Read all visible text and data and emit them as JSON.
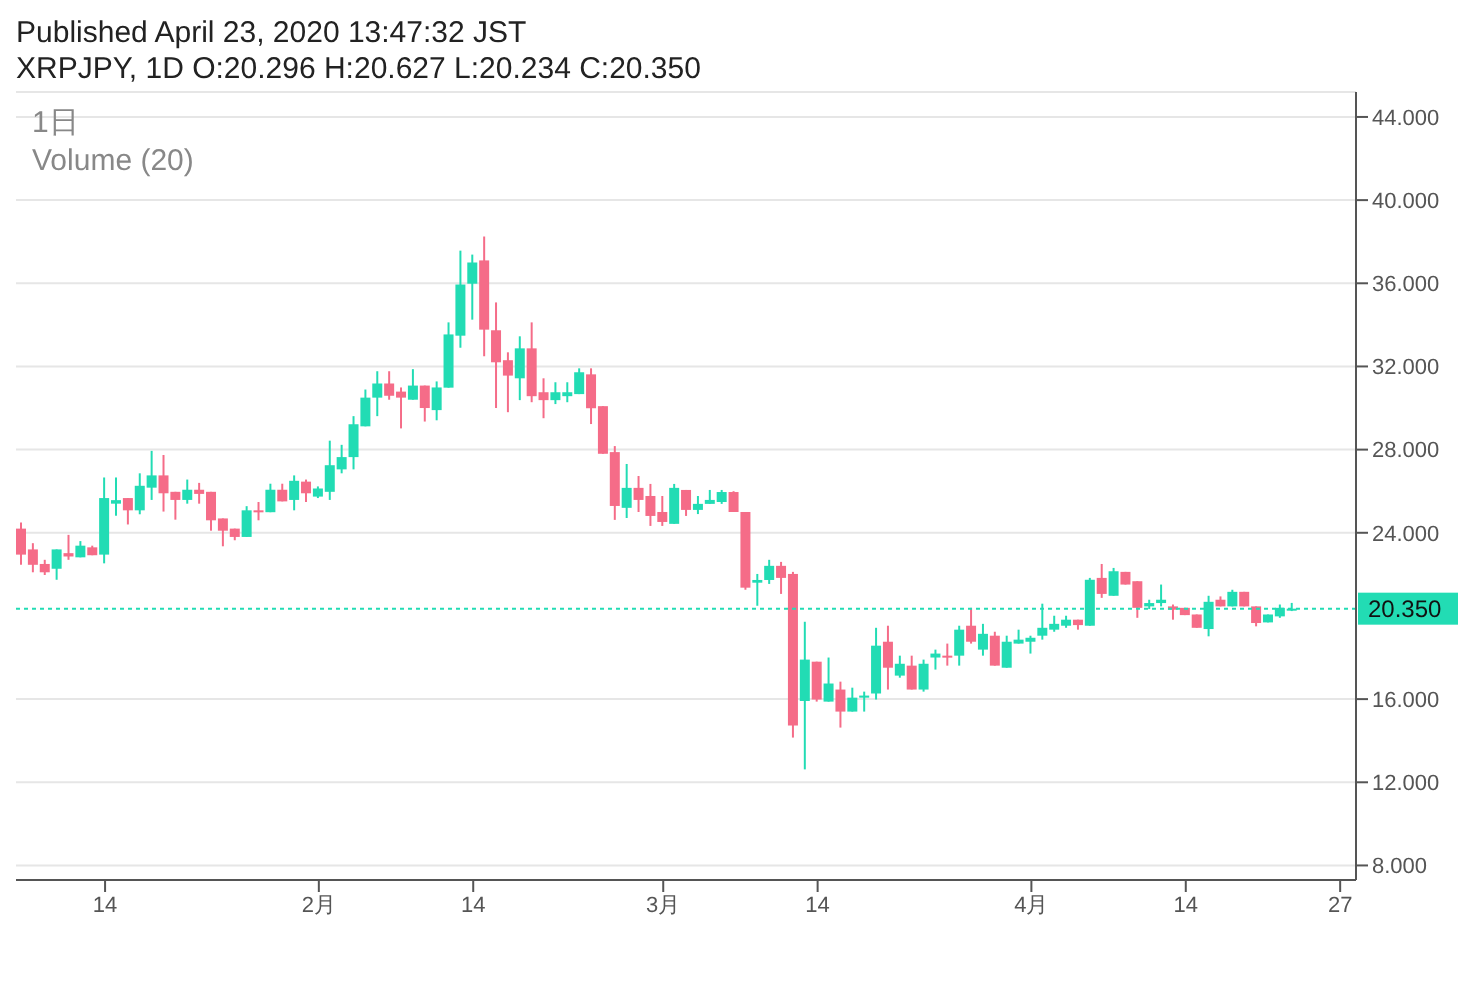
{
  "chart_data": {
    "type": "candlestick",
    "title": "Published April 23, 2020 13:47:32 JST",
    "subtitle": "XRPJPY, 1D O:20.296 H:20.627 L:20.234 C:20.350",
    "annotations": [
      "1日",
      "Volume (20)"
    ],
    "x": [
      "2020-01-07",
      "2020-01-08",
      "2020-01-09",
      "2020-01-10",
      "2020-01-11",
      "2020-01-12",
      "2020-01-13",
      "2020-01-14",
      "2020-01-15",
      "2020-01-16",
      "2020-01-17",
      "2020-01-18",
      "2020-01-19",
      "2020-01-20",
      "2020-01-21",
      "2020-01-22",
      "2020-01-23",
      "2020-01-24",
      "2020-01-25",
      "2020-01-26",
      "2020-01-27",
      "2020-01-28",
      "2020-01-29",
      "2020-01-30",
      "2020-01-31",
      "2020-02-01",
      "2020-02-02",
      "2020-02-03",
      "2020-02-04",
      "2020-02-05",
      "2020-02-06",
      "2020-02-07",
      "2020-02-08",
      "2020-02-09",
      "2020-02-10",
      "2020-02-11",
      "2020-02-12",
      "2020-02-13",
      "2020-02-14",
      "2020-02-15",
      "2020-02-16",
      "2020-02-17",
      "2020-02-18",
      "2020-02-19",
      "2020-02-20",
      "2020-02-21",
      "2020-02-22",
      "2020-02-23",
      "2020-02-24",
      "2020-02-25",
      "2020-02-26",
      "2020-02-27",
      "2020-02-28",
      "2020-02-29",
      "2020-03-01",
      "2020-03-02",
      "2020-03-03",
      "2020-03-04",
      "2020-03-05",
      "2020-03-06",
      "2020-03-07",
      "2020-03-08",
      "2020-03-09",
      "2020-03-10",
      "2020-03-11",
      "2020-03-12",
      "2020-03-13",
      "2020-03-14",
      "2020-03-15",
      "2020-03-16",
      "2020-03-17",
      "2020-03-18",
      "2020-03-19",
      "2020-03-20",
      "2020-03-21",
      "2020-03-22",
      "2020-03-23",
      "2020-03-24",
      "2020-03-25",
      "2020-03-26",
      "2020-03-27",
      "2020-03-28",
      "2020-03-29",
      "2020-03-30",
      "2020-03-31",
      "2020-04-01",
      "2020-04-02",
      "2020-04-03",
      "2020-04-04",
      "2020-04-05",
      "2020-04-06",
      "2020-04-07",
      "2020-04-08",
      "2020-04-09",
      "2020-04-10",
      "2020-04-11",
      "2020-04-12",
      "2020-04-13",
      "2020-04-14",
      "2020-04-15",
      "2020-04-16",
      "2020-04-17",
      "2020-04-18",
      "2020-04-19",
      "2020-04-20",
      "2020-04-21",
      "2020-04-22",
      "2020-04-23"
    ],
    "ohlc": [
      [
        24.2,
        24.5,
        22.46,
        22.95
      ],
      [
        23.2,
        23.5,
        22.1,
        22.46
      ],
      [
        22.5,
        22.7,
        21.97,
        22.1
      ],
      [
        22.27,
        23.2,
        21.74,
        23.2
      ],
      [
        23.02,
        23.9,
        22.7,
        22.86
      ],
      [
        22.82,
        23.6,
        22.82,
        23.38
      ],
      [
        23.3,
        23.38,
        22.92,
        22.92
      ],
      [
        22.95,
        26.66,
        22.53,
        25.67
      ],
      [
        25.4,
        26.66,
        24.82,
        25.57
      ],
      [
        25.67,
        25.67,
        24.4,
        25.08
      ],
      [
        25.08,
        26.86,
        24.89,
        26.26
      ],
      [
        26.17,
        27.94,
        25.58,
        26.76
      ],
      [
        26.76,
        27.74,
        25.02,
        25.9
      ],
      [
        25.97,
        25.97,
        24.63,
        25.58
      ],
      [
        25.58,
        26.56,
        25.4,
        26.07
      ],
      [
        26.07,
        26.4,
        25.4,
        25.87
      ],
      [
        25.97,
        25.97,
        24.1,
        24.6
      ],
      [
        24.69,
        24.69,
        23.35,
        24.1
      ],
      [
        24.2,
        24.2,
        23.64,
        23.8
      ],
      [
        23.8,
        25.28,
        23.8,
        25.08
      ],
      [
        25.08,
        25.48,
        24.6,
        24.99
      ],
      [
        24.99,
        26.36,
        24.99,
        26.07
      ],
      [
        26.07,
        26.36,
        25.51,
        25.51
      ],
      [
        25.58,
        26.76,
        25.08,
        26.5
      ],
      [
        26.46,
        26.56,
        25.48,
        25.9
      ],
      [
        25.74,
        26.23,
        25.67,
        26.13
      ],
      [
        25.97,
        28.43,
        25.58,
        27.25
      ],
      [
        27.05,
        28.23,
        26.86,
        27.64
      ],
      [
        27.64,
        29.61,
        27.05,
        29.22
      ],
      [
        29.12,
        30.89,
        29.12,
        30.5
      ],
      [
        30.5,
        31.77,
        29.61,
        31.18
      ],
      [
        31.18,
        31.77,
        30.4,
        30.59
      ],
      [
        30.79,
        30.99,
        29.02,
        30.5
      ],
      [
        30.4,
        31.87,
        30.4,
        31.08
      ],
      [
        31.08,
        31.08,
        29.35,
        30.0
      ],
      [
        29.9,
        31.28,
        29.41,
        30.99
      ],
      [
        30.98,
        34.12,
        30.98,
        33.54
      ],
      [
        33.48,
        37.57,
        32.9,
        35.94
      ],
      [
        35.98,
        37.38,
        34.25,
        37.0
      ],
      [
        37.1,
        38.25,
        32.49,
        33.77
      ],
      [
        33.74,
        35.08,
        30.0,
        32.2
      ],
      [
        32.3,
        32.68,
        29.8,
        31.56
      ],
      [
        31.43,
        33.45,
        30.38,
        32.87
      ],
      [
        32.87,
        34.12,
        30.28,
        30.57
      ],
      [
        30.76,
        31.43,
        29.51,
        30.38
      ],
      [
        30.38,
        31.24,
        30.19,
        30.76
      ],
      [
        30.57,
        31.24,
        30.28,
        30.76
      ],
      [
        30.67,
        31.91,
        30.67,
        31.72
      ],
      [
        31.62,
        31.91,
        29.23,
        29.99
      ],
      [
        30.09,
        30.09,
        27.8,
        27.8
      ],
      [
        27.88,
        28.17,
        24.62,
        25.29
      ],
      [
        25.2,
        27.31,
        24.71,
        26.16
      ],
      [
        26.16,
        26.73,
        25.0,
        25.58
      ],
      [
        25.77,
        26.35,
        24.33,
        24.81
      ],
      [
        25.0,
        25.77,
        24.33,
        24.52
      ],
      [
        24.43,
        26.35,
        24.43,
        26.16
      ],
      [
        26.06,
        26.06,
        24.81,
        25.1
      ],
      [
        25.1,
        25.77,
        24.9,
        25.39
      ],
      [
        25.39,
        26.06,
        25.39,
        25.58
      ],
      [
        25.48,
        26.06,
        25.39,
        25.96
      ],
      [
        25.96,
        26.0,
        25.0,
        25.0
      ],
      [
        25.0,
        25.0,
        21.26,
        21.36
      ],
      [
        21.6,
        22.02,
        20.49,
        21.73
      ],
      [
        21.73,
        22.7,
        21.54,
        22.41
      ],
      [
        22.41,
        22.6,
        21.06,
        21.83
      ],
      [
        22.02,
        22.12,
        14.15,
        14.73
      ],
      [
        15.91,
        19.72,
        12.62,
        17.9
      ],
      [
        17.8,
        17.8,
        15.88,
        15.98
      ],
      [
        15.88,
        18.0,
        15.88,
        16.75
      ],
      [
        16.46,
        16.84,
        14.63,
        15.4
      ],
      [
        15.4,
        16.55,
        15.4,
        16.07
      ],
      [
        16.07,
        16.36,
        15.4,
        16.17
      ],
      [
        16.27,
        19.43,
        15.98,
        18.57
      ],
      [
        18.76,
        19.53,
        16.46,
        17.51
      ],
      [
        17.13,
        18.09,
        17.03,
        17.7
      ],
      [
        17.61,
        18.09,
        16.46,
        16.46
      ],
      [
        16.46,
        17.9,
        16.36,
        17.7
      ],
      [
        18.0,
        18.38,
        17.42,
        18.19
      ],
      [
        18.09,
        18.67,
        17.61,
        18.0
      ],
      [
        18.09,
        19.53,
        17.61,
        19.34
      ],
      [
        19.53,
        20.39,
        18.67,
        18.76
      ],
      [
        18.38,
        19.62,
        18.09,
        19.14
      ],
      [
        19.05,
        19.24,
        17.61,
        17.61
      ],
      [
        17.51,
        19.05,
        17.51,
        18.76
      ],
      [
        18.67,
        19.34,
        18.67,
        18.86
      ],
      [
        18.76,
        19.05,
        18.19,
        18.95
      ],
      [
        19.05,
        20.59,
        18.86,
        19.43
      ],
      [
        19.34,
        20.01,
        19.24,
        19.62
      ],
      [
        19.53,
        20.01,
        19.43,
        19.82
      ],
      [
        19.82,
        19.82,
        19.34,
        19.56
      ],
      [
        19.53,
        21.83,
        19.53,
        21.74
      ],
      [
        21.83,
        22.5,
        20.87,
        21.06
      ],
      [
        20.97,
        22.31,
        20.97,
        22.15
      ],
      [
        22.12,
        22.12,
        21.51,
        21.51
      ],
      [
        21.67,
        21.67,
        19.91,
        20.39
      ],
      [
        20.46,
        20.78,
        20.33,
        20.62
      ],
      [
        20.62,
        21.51,
        20.46,
        20.78
      ],
      [
        20.46,
        20.55,
        19.82,
        20.3
      ],
      [
        20.39,
        20.39,
        20.04,
        20.04
      ],
      [
        20.07,
        20.07,
        19.43,
        19.43
      ],
      [
        19.37,
        20.97,
        19.02,
        20.68
      ],
      [
        20.78,
        20.94,
        20.46,
        20.46
      ],
      [
        20.46,
        21.26,
        20.46,
        21.16
      ],
      [
        21.16,
        21.16,
        20.46,
        20.46
      ],
      [
        20.46,
        20.46,
        19.5,
        19.66
      ],
      [
        19.69,
        20.07,
        19.69,
        20.07
      ],
      [
        19.98,
        20.55,
        19.91,
        20.39
      ],
      [
        20.296,
        20.627,
        20.234,
        20.35
      ]
    ],
    "colors": [
      "#f56c88",
      "#f56c88",
      "#f56c88",
      "#22dcb4",
      "#f56c88",
      "#22dcb4",
      "#f56c88",
      "#22dcb4",
      "#22dcb4",
      "#f56c88",
      "#22dcb4",
      "#22dcb4",
      "#f56c88",
      "#f56c88",
      "#22dcb4",
      "#f56c88",
      "#f56c88",
      "#f56c88",
      "#f56c88",
      "#22dcb4",
      "#f56c88",
      "#22dcb4",
      "#f56c88",
      "#22dcb4",
      "#f56c88",
      "#22dcb4",
      "#22dcb4",
      "#22dcb4",
      "#22dcb4",
      "#22dcb4",
      "#22dcb4",
      "#f56c88",
      "#f56c88",
      "#22dcb4",
      "#f56c88",
      "#22dcb4",
      "#22dcb4",
      "#22dcb4",
      "#22dcb4",
      "#f56c88",
      "#f56c88",
      "#f56c88",
      "#22dcb4",
      "#f56c88",
      "#f56c88",
      "#22dcb4",
      "#22dcb4",
      "#22dcb4",
      "#f56c88",
      "#f56c88",
      "#f56c88",
      "#22dcb4",
      "#f56c88",
      "#f56c88",
      "#f56c88",
      "#22dcb4",
      "#f56c88",
      "#22dcb4",
      "#22dcb4",
      "#22dcb4",
      "#f56c88",
      "#f56c88",
      "#22dcb4",
      "#22dcb4",
      "#f56c88",
      "#f56c88",
      "#22dcb4",
      "#f56c88",
      "#22dcb4",
      "#f56c88",
      "#22dcb4",
      "#22dcb4",
      "#22dcb4",
      "#f56c88",
      "#22dcb4",
      "#f56c88",
      "#22dcb4",
      "#22dcb4",
      "#f56c88",
      "#22dcb4",
      "#f56c88",
      "#22dcb4",
      "#f56c88",
      "#22dcb4",
      "#22dcb4",
      "#22dcb4",
      "#22dcb4",
      "#22dcb4",
      "#22dcb4",
      "#f56c88",
      "#22dcb4",
      "#f56c88",
      "#22dcb4",
      "#f56c88",
      "#f56c88",
      "#22dcb4",
      "#22dcb4",
      "#f56c88",
      "#f56c88",
      "#f56c88",
      "#22dcb4",
      "#f56c88",
      "#22dcb4",
      "#f56c88",
      "#f56c88",
      "#22dcb4",
      "#22dcb4",
      "#22dcb4"
    ],
    "xlim": [
      "2020-01-06T12:00",
      "2020-04-28T08:00"
    ],
    "xticks": [
      {
        "value": "2020-01-14",
        "label": "14"
      },
      {
        "value": "2020-02-01",
        "label": "2月"
      },
      {
        "value": "2020-02-14",
        "label": "14"
      },
      {
        "value": "2020-03-01",
        "label": "3月"
      },
      {
        "value": "2020-03-14",
        "label": "14"
      },
      {
        "value": "2020-04-01",
        "label": "4月"
      },
      {
        "value": "2020-04-14",
        "label": "14"
      },
      {
        "value": "2020-04-27",
        "label": "27"
      }
    ],
    "ylim": [
      7.3,
      45.2
    ],
    "yticks": [
      {
        "value": 8,
        "label": "8.000"
      },
      {
        "value": 12,
        "label": "12.000"
      },
      {
        "value": 16,
        "label": "16.000"
      },
      {
        "value": 24,
        "label": "24.000"
      },
      {
        "value": 28,
        "label": "28.000"
      },
      {
        "value": 32,
        "label": "32.000"
      },
      {
        "value": 36,
        "label": "36.000"
      },
      {
        "value": 40,
        "label": "40.000"
      },
      {
        "value": 44,
        "label": "44.000"
      }
    ],
    "ref_lines": [
      {
        "axis": "y",
        "value": 20.35,
        "label": "20.350",
        "color": "#22dcb4",
        "line_style": "dotted"
      }
    ],
    "grid": "y"
  }
}
